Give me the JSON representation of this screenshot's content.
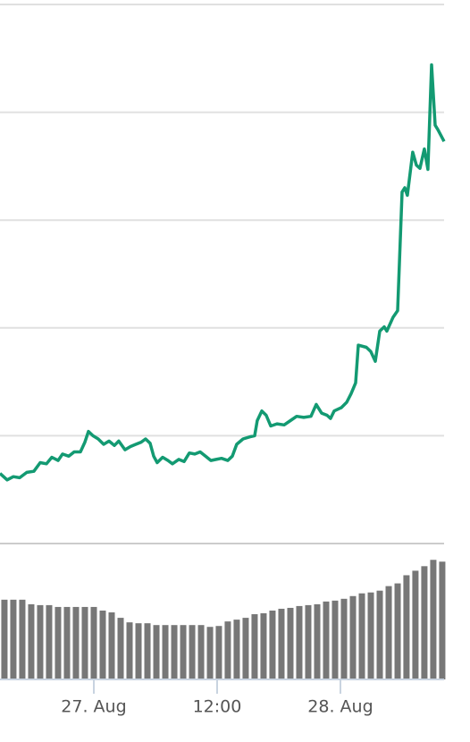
{
  "chart_data": {
    "type": "line",
    "xlim": [
      -9.13,
      34.09
    ],
    "xticks": [
      {
        "value": 0,
        "label": "27. Aug"
      },
      {
        "value": 12,
        "label": "12:00"
      },
      {
        "value": 24,
        "label": "28. Aug"
      }
    ],
    "ylim": [
      0,
      5
    ],
    "yticks": [
      0,
      1,
      2,
      3,
      4,
      5
    ],
    "y2lim": [
      0,
      15
    ],
    "grid": true,
    "series": [
      {
        "type": "line",
        "color": "#139a72",
        "x": [
          -9.13,
          -8.43,
          -7.83,
          -7.22,
          -6.52,
          -5.83,
          -5.22,
          -4.61,
          -4.09,
          -3.48,
          -3.04,
          -2.43,
          -1.91,
          -1.3,
          -0.87,
          -0.52,
          -0.09,
          0.43,
          0.96,
          1.48,
          2.0,
          2.43,
          3.04,
          3.57,
          4.09,
          4.61,
          5.04,
          5.48,
          5.83,
          6.17,
          6.7,
          7.22,
          7.65,
          8.26,
          8.78,
          9.3,
          9.83,
          10.35,
          10.87,
          11.39,
          11.91,
          12.43,
          13.04,
          13.48,
          13.91,
          14.52,
          15.22,
          15.65,
          15.91,
          16.35,
          16.78,
          17.22,
          17.83,
          18.52,
          19.13,
          19.74,
          20.43,
          21.13,
          21.65,
          22.17,
          22.7,
          23.04,
          23.39,
          24.09,
          24.61,
          25.04,
          25.48,
          25.74,
          26.52,
          26.96,
          27.39,
          27.83,
          28.26,
          28.52,
          29.13,
          29.57,
          30.0,
          30.26,
          30.52,
          31.04,
          31.39,
          31.74,
          32.17,
          32.52,
          32.87,
          33.22,
          33.48,
          34.09
        ],
        "values": [
          0.65,
          0.59,
          0.62,
          0.61,
          0.66,
          0.67,
          0.75,
          0.74,
          0.8,
          0.77,
          0.83,
          0.81,
          0.85,
          0.85,
          0.94,
          1.04,
          1.0,
          0.97,
          0.92,
          0.95,
          0.91,
          0.95,
          0.87,
          0.9,
          0.92,
          0.94,
          0.97,
          0.93,
          0.81,
          0.75,
          0.8,
          0.77,
          0.74,
          0.78,
          0.76,
          0.84,
          0.83,
          0.85,
          0.81,
          0.77,
          0.78,
          0.79,
          0.77,
          0.81,
          0.92,
          0.97,
          0.99,
          1.0,
          1.14,
          1.23,
          1.19,
          1.09,
          1.11,
          1.1,
          1.14,
          1.18,
          1.17,
          1.18,
          1.29,
          1.21,
          1.19,
          1.16,
          1.23,
          1.26,
          1.31,
          1.39,
          1.49,
          1.84,
          1.82,
          1.78,
          1.69,
          1.97,
          2.01,
          1.97,
          2.1,
          2.16,
          3.26,
          3.3,
          3.23,
          3.63,
          3.51,
          3.48,
          3.66,
          3.47,
          4.44,
          3.88,
          3.84,
          3.73
        ]
      },
      {
        "type": "bar",
        "axis": "y2",
        "color": "#777777",
        "x": [
          -8.7,
          -7.83,
          -6.96,
          -6.09,
          -5.22,
          -4.35,
          -3.48,
          -2.61,
          -1.74,
          -0.87,
          0,
          0.87,
          1.74,
          2.61,
          3.48,
          4.35,
          5.22,
          6.09,
          6.96,
          7.83,
          8.7,
          9.57,
          10.44,
          11.31,
          12.17,
          13.04,
          13.91,
          14.78,
          15.65,
          16.52,
          17.39,
          18.26,
          19.13,
          20,
          20.87,
          21.74,
          22.61,
          23.48,
          24.35,
          25.22,
          26.09,
          26.96,
          27.83,
          28.7,
          29.57,
          30.43,
          31.3,
          32.17,
          33.04,
          33.91
        ],
        "values": [
          8.8,
          8.8,
          8.8,
          8.3,
          8.2,
          8.2,
          8.0,
          8.0,
          8.0,
          8.0,
          8.0,
          7.6,
          7.4,
          6.8,
          6.3,
          6.2,
          6.2,
          6.0,
          6.0,
          6.0,
          6.0,
          6.0,
          6.0,
          5.8,
          5.9,
          6.4,
          6.6,
          6.8,
          7.2,
          7.3,
          7.6,
          7.8,
          7.9,
          8.1,
          8.2,
          8.3,
          8.6,
          8.7,
          8.9,
          9.2,
          9.5,
          9.6,
          9.8,
          10.3,
          10.6,
          11.5,
          12.0,
          12.5,
          13.2,
          13.0
        ]
      }
    ]
  }
}
